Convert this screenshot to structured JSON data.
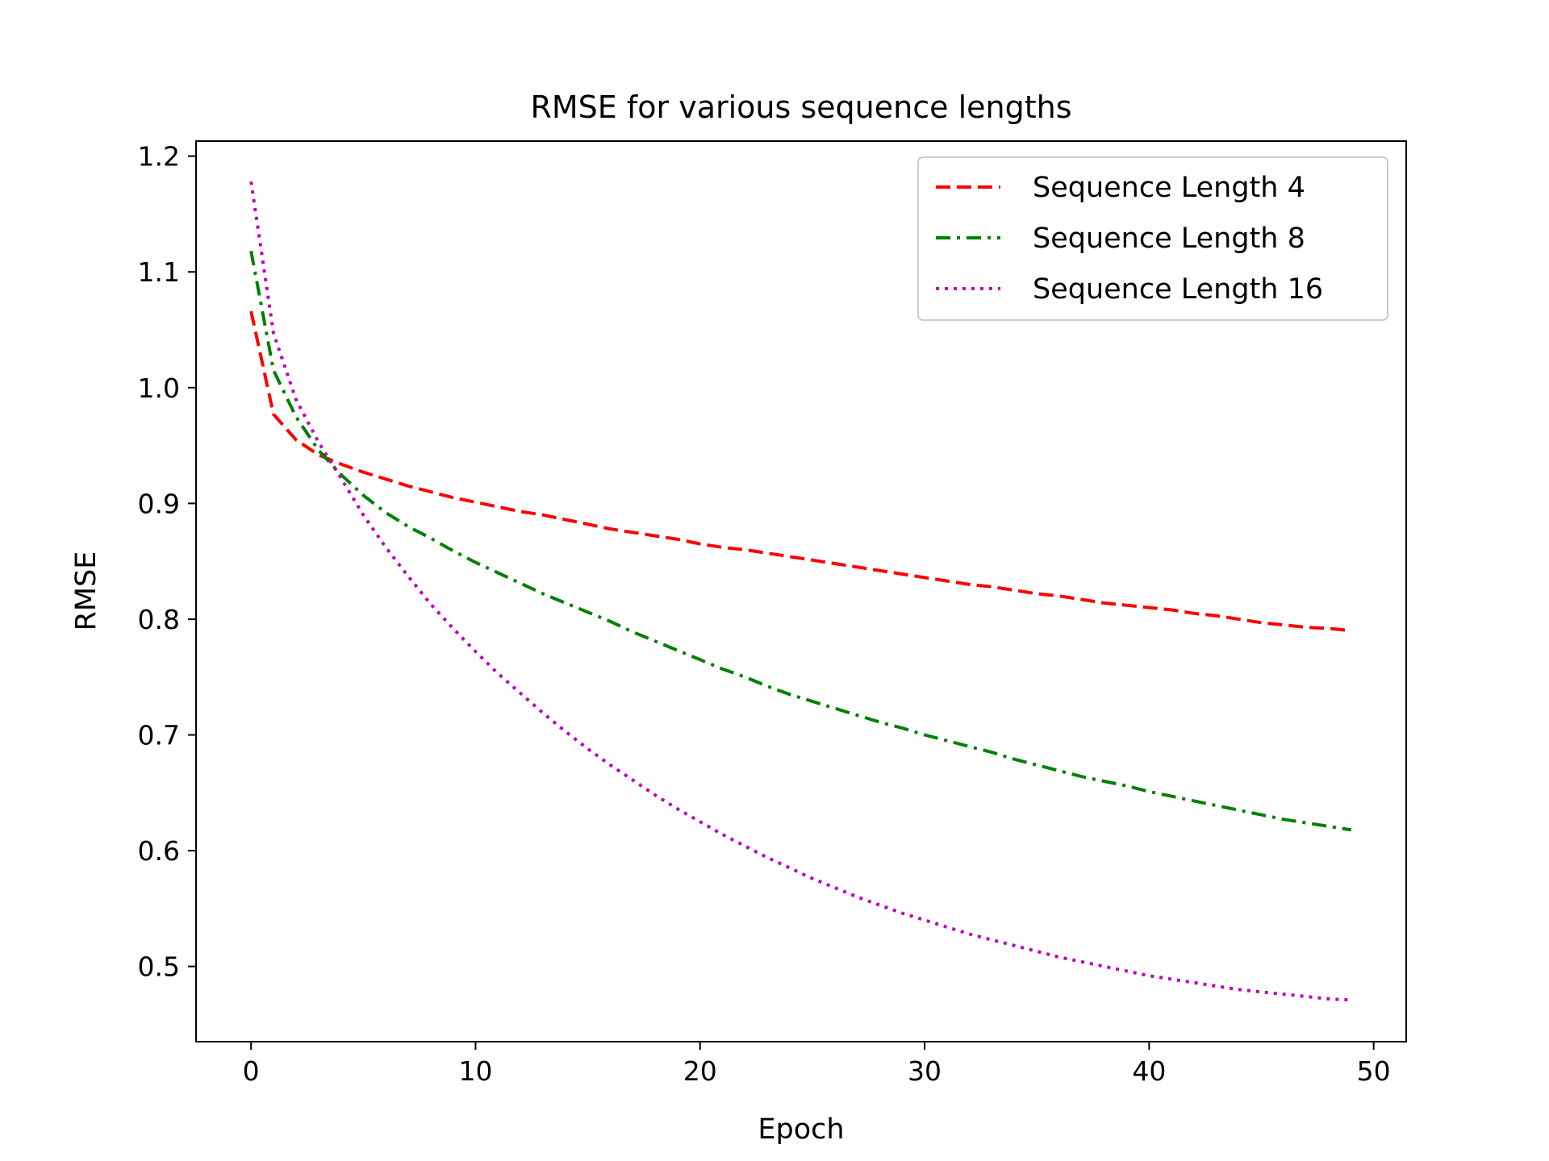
{
  "chart_data": {
    "type": "line",
    "title": "RMSE for various sequence lengths",
    "xlabel": "Epoch",
    "ylabel": "RMSE",
    "xlim": [
      -2.45,
      51.45
    ],
    "ylim": [
      0.435,
      1.213
    ],
    "xticks": [
      0,
      10,
      20,
      30,
      40,
      50
    ],
    "yticks": [
      0.5,
      0.6,
      0.7,
      0.8,
      0.9,
      1.0,
      1.1,
      1.2
    ],
    "xtick_labels": [
      "0",
      "10",
      "20",
      "30",
      "40",
      "50"
    ],
    "ytick_labels": [
      "0.5",
      "0.6",
      "0.7",
      "0.8",
      "0.9",
      "1.0",
      "1.1",
      "1.2"
    ],
    "grid": false,
    "legend_position": "top-right",
    "x": [
      0,
      1,
      2,
      3,
      4,
      5,
      6,
      7,
      8,
      9,
      10,
      11,
      12,
      13,
      14,
      15,
      16,
      17,
      18,
      19,
      20,
      21,
      22,
      23,
      24,
      25,
      26,
      27,
      28,
      29,
      30,
      31,
      32,
      33,
      34,
      35,
      36,
      37,
      38,
      39,
      40,
      41,
      42,
      43,
      44,
      45,
      46,
      47,
      48,
      49
    ],
    "series": [
      {
        "name": "Sequence Length 4",
        "color": "#ff0000",
        "dash": "dashed",
        "values": [
          1.066,
          0.977,
          0.955,
          0.942,
          0.934,
          0.927,
          0.921,
          0.915,
          0.91,
          0.905,
          0.901,
          0.897,
          0.893,
          0.89,
          0.886,
          0.882,
          0.878,
          0.875,
          0.872,
          0.869,
          0.865,
          0.862,
          0.86,
          0.857,
          0.854,
          0.851,
          0.848,
          0.845,
          0.842,
          0.839,
          0.836,
          0.833,
          0.83,
          0.828,
          0.825,
          0.822,
          0.82,
          0.817,
          0.814,
          0.812,
          0.81,
          0.808,
          0.805,
          0.803,
          0.8,
          0.797,
          0.795,
          0.793,
          0.792,
          0.79
        ]
      },
      {
        "name": "Sequence Length 8",
        "color": "#008000",
        "dash": "dashdot",
        "values": [
          1.118,
          1.015,
          0.975,
          0.946,
          0.925,
          0.907,
          0.892,
          0.88,
          0.87,
          0.859,
          0.849,
          0.84,
          0.831,
          0.822,
          0.814,
          0.806,
          0.798,
          0.789,
          0.781,
          0.773,
          0.765,
          0.757,
          0.75,
          0.742,
          0.735,
          0.729,
          0.723,
          0.717,
          0.711,
          0.706,
          0.7,
          0.695,
          0.69,
          0.685,
          0.679,
          0.674,
          0.669,
          0.664,
          0.66,
          0.656,
          0.651,
          0.647,
          0.643,
          0.639,
          0.635,
          0.631,
          0.627,
          0.624,
          0.621,
          0.618
        ]
      },
      {
        "name": "Sequence Length 16",
        "color": "#bf00bf",
        "dash": "dotted",
        "values": [
          1.178,
          1.047,
          0.99,
          0.953,
          0.922,
          0.89,
          0.862,
          0.837,
          0.813,
          0.792,
          0.772,
          0.753,
          0.736,
          0.719,
          0.703,
          0.688,
          0.674,
          0.661,
          0.648,
          0.636,
          0.625,
          0.614,
          0.604,
          0.594,
          0.585,
          0.576,
          0.568,
          0.56,
          0.553,
          0.546,
          0.54,
          0.534,
          0.528,
          0.523,
          0.518,
          0.513,
          0.508,
          0.504,
          0.5,
          0.496,
          0.492,
          0.489,
          0.486,
          0.483,
          0.48,
          0.478,
          0.476,
          0.474,
          0.472,
          0.471
        ]
      }
    ]
  }
}
